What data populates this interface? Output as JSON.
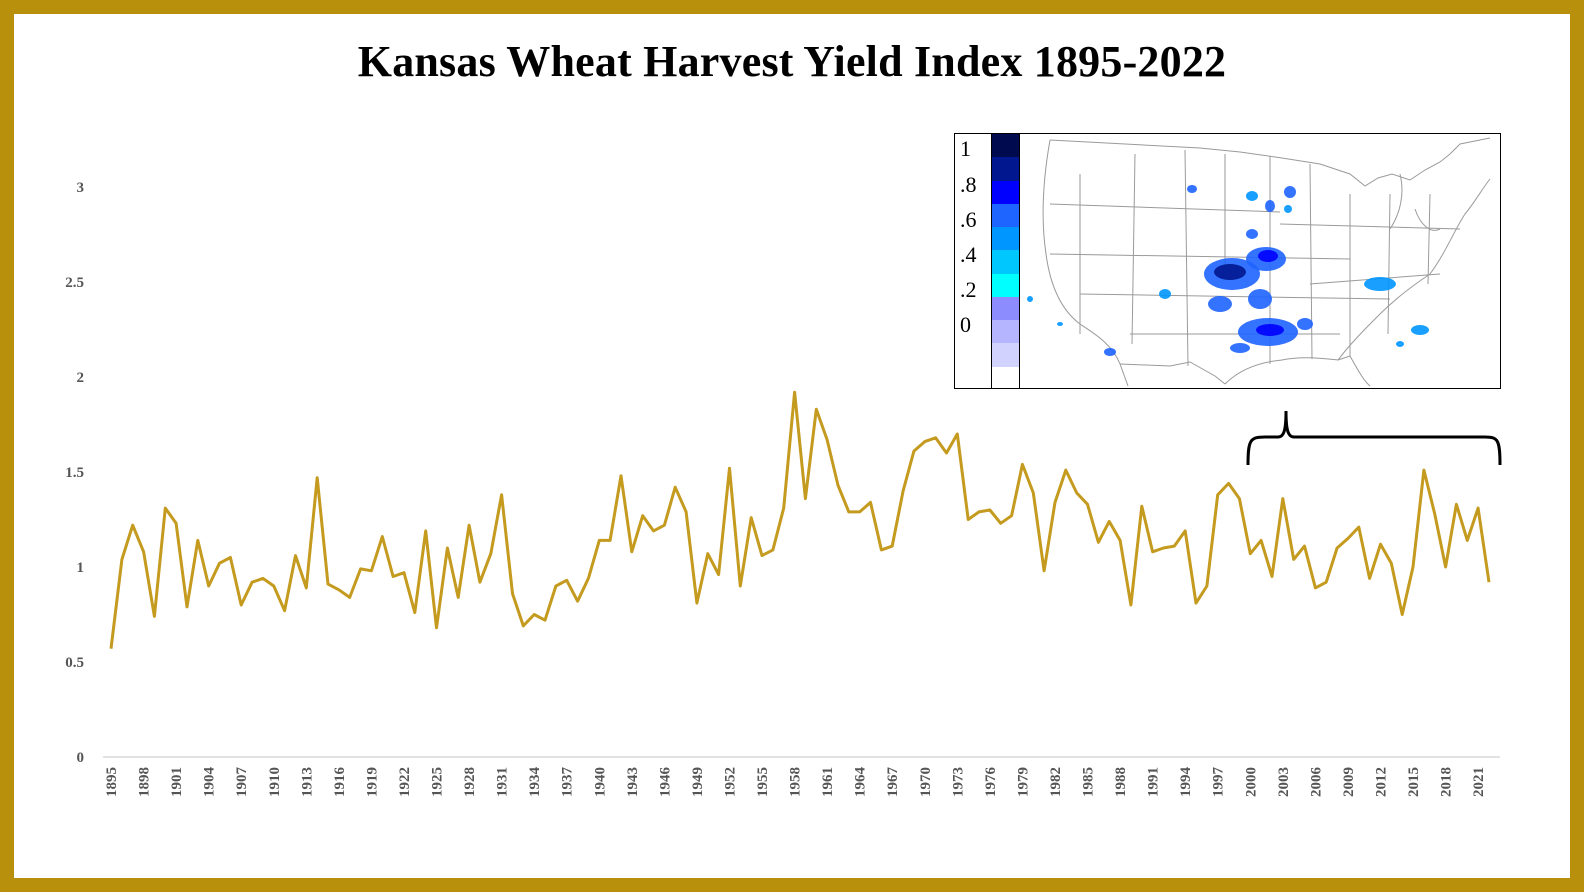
{
  "colors": {
    "frame": "#b8900b",
    "line": "#c49a1f",
    "axis": "#d9d9d9",
    "text": "#555555"
  },
  "chart_data": {
    "type": "line",
    "title": "Kansas Wheat Harvest Yield Index 1895-2022",
    "xlabel": "",
    "ylabel": "",
    "ylim": [
      0,
      3
    ],
    "yticks": [
      "0",
      "0.5",
      "1",
      "1.5",
      "2",
      "2.5",
      "3"
    ],
    "xticks": [
      "1895",
      "1898",
      "1901",
      "1904",
      "1907",
      "1910",
      "1913",
      "1916",
      "1919",
      "1922",
      "1925",
      "1928",
      "1931",
      "1934",
      "1937",
      "1940",
      "1943",
      "1946",
      "1949",
      "1952",
      "1955",
      "1958",
      "1961",
      "1964",
      "1967",
      "1970",
      "1973",
      "1976",
      "1979",
      "1982",
      "1985",
      "1988",
      "1991",
      "1994",
      "1997",
      "2000",
      "2003",
      "2006",
      "2009",
      "2012",
      "2015",
      "2018",
      "2021"
    ],
    "grid": false,
    "x_start": 1895,
    "x_end": 2022,
    "series": [
      {
        "values": [
          0.57,
          1.04,
          1.22,
          1.08,
          0.74,
          1.31,
          1.23,
          0.79,
          1.14,
          0.9,
          1.02,
          1.05,
          0.8,
          0.92,
          0.94,
          0.9,
          0.77,
          1.06,
          0.89,
          1.47,
          0.91,
          0.88,
          0.84,
          0.99,
          0.98,
          1.16,
          0.95,
          0.97,
          0.76,
          1.19,
          0.68,
          1.1,
          0.84,
          1.22,
          0.92,
          1.07,
          1.38,
          0.86,
          0.69,
          0.75,
          0.72,
          0.9,
          0.93,
          0.82,
          0.94,
          1.14,
          1.14,
          1.48,
          1.08,
          1.27,
          1.19,
          1.22,
          1.42,
          1.29,
          0.81,
          1.07,
          0.96,
          1.52,
          0.9,
          1.26,
          1.06,
          1.09,
          1.31,
          1.92,
          1.36,
          1.83,
          1.67,
          1.43,
          1.29,
          1.29,
          1.34,
          1.09,
          1.11,
          1.4,
          1.61,
          1.66,
          1.68,
          1.6,
          1.7,
          1.25,
          1.29,
          1.3,
          1.23,
          1.27,
          1.54,
          1.39,
          0.98,
          1.34,
          1.51,
          1.39,
          1.33,
          1.13,
          1.24,
          1.14,
          0.8,
          1.32,
          1.08,
          1.1,
          1.11,
          1.19,
          0.81,
          0.9,
          1.38,
          1.44,
          1.36,
          1.07,
          1.14,
          0.95,
          1.36,
          1.04,
          1.11,
          0.89,
          0.92,
          1.1,
          1.15,
          1.21,
          0.94,
          1.12,
          1.02,
          0.75,
          1.0,
          1.51,
          1.28,
          1.0,
          1.33,
          1.14,
          1.31,
          0.92
        ]
      }
    ]
  },
  "inset": {
    "colorbar_labels": [
      "1",
      ".8",
      ".6",
      ".4",
      ".2",
      "0"
    ],
    "colorbar_colors": [
      "#000a4f",
      "#00178f",
      "#0000ff",
      "#1e64ff",
      "#0096ff",
      "#00c8ff",
      "#00ffff",
      "#8c8cff",
      "#b4b4ff",
      "#d2d2ff",
      "#ffffff"
    ]
  }
}
